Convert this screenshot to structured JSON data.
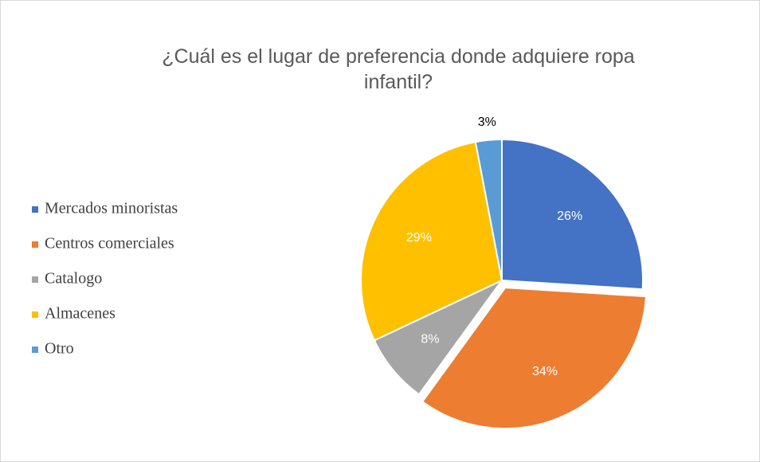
{
  "chart_data": {
    "type": "pie",
    "title": "¿Cuál es el lugar de preferencia donde adquiere ropa infantil?",
    "categories": [
      "Mercados minoristas",
      "Centros comerciales",
      "Catalogo",
      "Almacenes",
      "Otro"
    ],
    "values": [
      26,
      34,
      8,
      29,
      3
    ],
    "value_labels": [
      "26%",
      "34%",
      "8%",
      "29%",
      "3%"
    ],
    "colors": [
      "#4472c4",
      "#ed7d31",
      "#a5a5a5",
      "#ffc000",
      "#5b9bd5"
    ],
    "legend": "left"
  }
}
